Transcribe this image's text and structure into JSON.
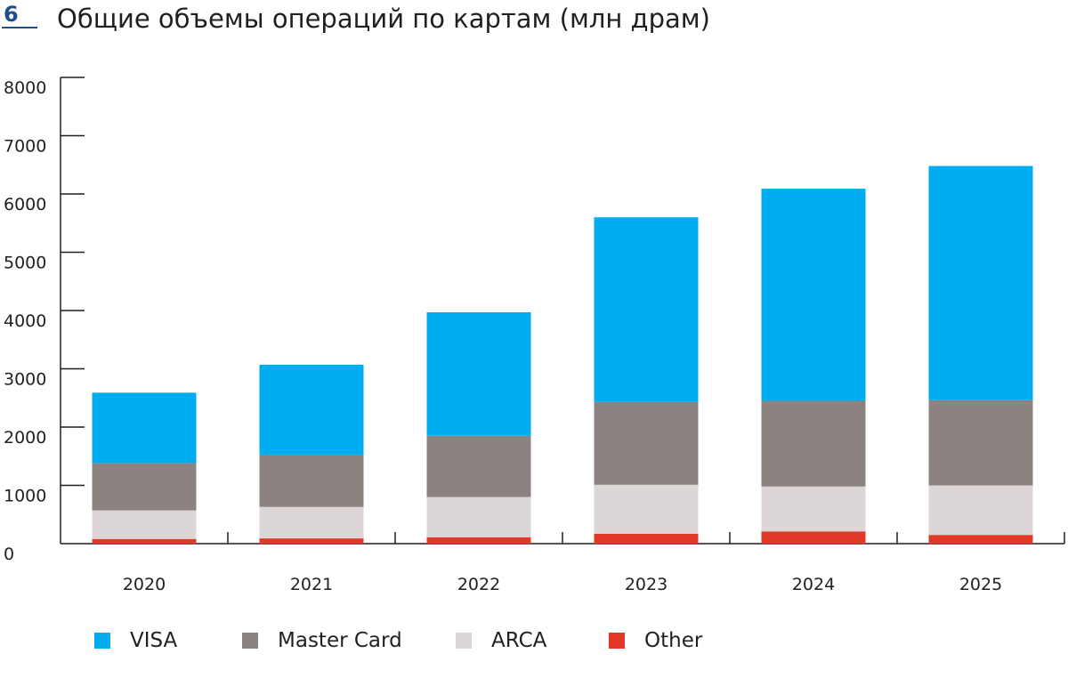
{
  "figure": {
    "number": "6",
    "title": "Общие объемы операций по картам (млн драм)"
  },
  "chart_data": {
    "type": "bar",
    "stacked": true,
    "title": "Общие объемы операций по картам (млн драм)",
    "categories": [
      "2020",
      "2021",
      "2022",
      "2023",
      "2024",
      "2025"
    ],
    "yticks": [
      "0",
      "1000",
      "2000",
      "3000",
      "4000",
      "5000",
      "6000",
      "7000",
      "8000"
    ],
    "ylim": [
      0,
      8000
    ],
    "grid": false,
    "legend_position": "bottom",
    "series": [
      {
        "name": "Other",
        "color": "#e2382a",
        "values": [
          80,
          90,
          110,
          170,
          210,
          150
        ]
      },
      {
        "name": "ARCA",
        "color": "#dcd6d6",
        "values": [
          490,
          540,
          690,
          840,
          770,
          850
        ]
      },
      {
        "name": "Master Card",
        "color": "#8c8280",
        "values": [
          810,
          890,
          1050,
          1420,
          1470,
          1460
        ]
      },
      {
        "name": "VISA",
        "color": "#00aeef",
        "values": [
          1210,
          1550,
          2120,
          3170,
          3640,
          4020
        ]
      }
    ]
  },
  "legend": {
    "items": [
      {
        "label": "VISA",
        "color": "#00aeef"
      },
      {
        "label": "Master Card",
        "color": "#8c8280"
      },
      {
        "label": "ARCA",
        "color": "#dcd6d6"
      },
      {
        "label": "Other",
        "color": "#e2382a"
      }
    ]
  }
}
